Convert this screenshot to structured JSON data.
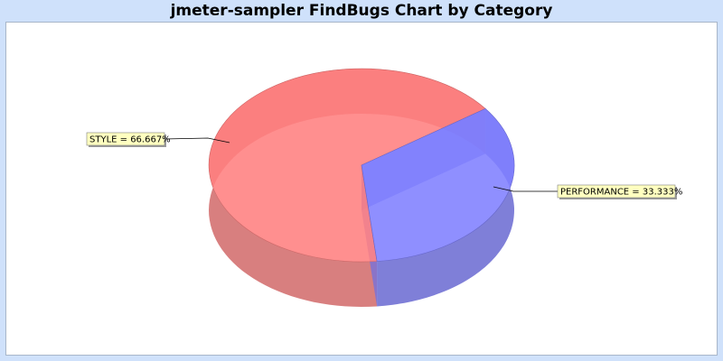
{
  "title": "jmeter-sampler FindBugs Chart by Category",
  "chart_data": {
    "type": "pie",
    "title": "jmeter-sampler FindBugs Chart by Category",
    "three_d": true,
    "slices": [
      {
        "name": "STYLE",
        "value": 66.667,
        "label": "STYLE = 66.667%",
        "color": "#ff7f7f"
      },
      {
        "name": "PERFORMANCE",
        "value": 33.333,
        "label": "PERFORMANCE = 33.333%",
        "color": "#7f7fff"
      }
    ],
    "label_background": "#ffffc0"
  }
}
